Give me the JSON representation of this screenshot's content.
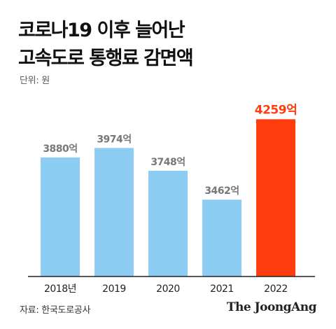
{
  "title": {
    "line1": "코로나19 이후 늘어난",
    "line2": "고속도로 통행료 감면액"
  },
  "unit_label": "단위: 원",
  "source": "자료: 한국도로공사",
  "brand": "The JoongAng",
  "colors": {
    "bar": "#8ecdf3",
    "highlight": "#ff3d0f",
    "value_label": "#777777",
    "axis": "#222222"
  },
  "chart_data": {
    "type": "bar",
    "categories": [
      "2018년",
      "2019",
      "2020",
      "2021",
      "2022"
    ],
    "values": [
      3880,
      3974,
      3748,
      3462,
      4259
    ],
    "value_labels": [
      "3880억",
      "3974억",
      "3748억",
      "3462억",
      "4259억"
    ],
    "highlight_index": 4,
    "ylabel": "",
    "ylim": [
      2700,
      4400
    ],
    "grid": false,
    "legend": "none"
  }
}
